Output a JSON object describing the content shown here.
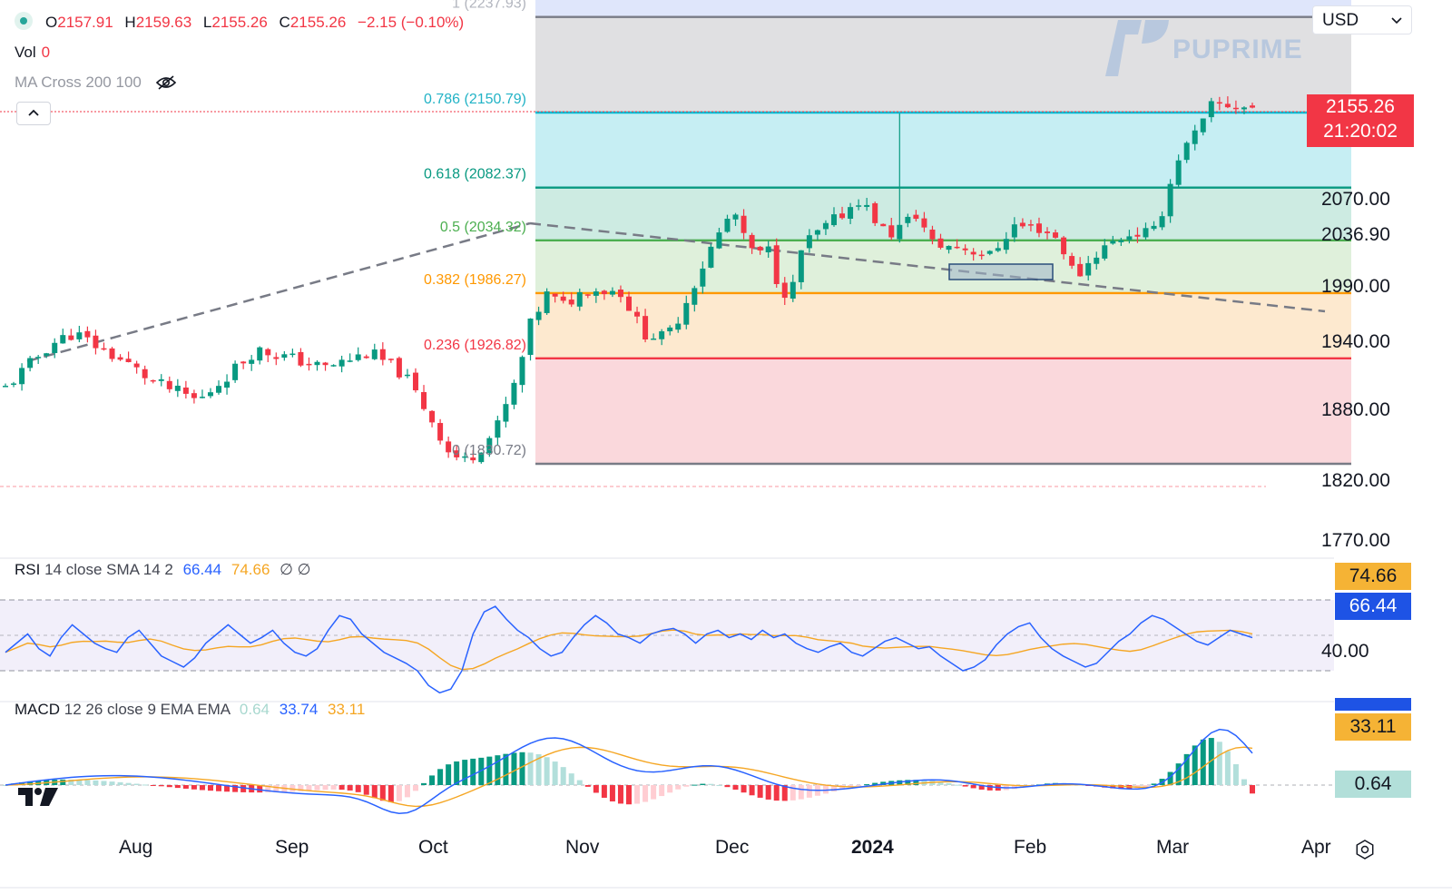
{
  "legend": {
    "open_label": "O",
    "open": "2157.91",
    "high_label": "H",
    "high": "2159.63",
    "low_label": "L",
    "low": "2155.26",
    "close_label": "C",
    "close": "2155.26",
    "change": "−2.15 (−0.10%)"
  },
  "volume": {
    "label": "Vol",
    "value": "0"
  },
  "ma_cross": {
    "label": "MA Cross 200 100"
  },
  "currency": {
    "selected": "USD"
  },
  "watermark": "PUPRIME",
  "price_label": {
    "price": "2155.26",
    "countdown": "21:20:02",
    "color": "#f23645"
  },
  "fib_levels": [
    {
      "ratio": "1",
      "price": 2237.93,
      "label": "1 (2237.93)",
      "line_color": "#787b86",
      "fill": null,
      "label_color": "#b2b5be"
    },
    {
      "ratio": "0.786",
      "price": 2150.79,
      "label": "0.786 (2150.79)",
      "line_color": "#00bcd4",
      "fill": "#e0e0e2",
      "label_color": "#22b3c6"
    },
    {
      "ratio": "0.618",
      "price": 2082.37,
      "label": "0.618 (2082.37)",
      "line_color": "#089981",
      "fill": "#c6eef3",
      "label_color": "#089981"
    },
    {
      "ratio": "0.5",
      "price": 2034.32,
      "label": "0.5 (2034.32)",
      "line_color": "#4caf50",
      "fill": "#cdebe2",
      "label_color": "#4caf50"
    },
    {
      "ratio": "0.382",
      "price": 1986.27,
      "label": "0.382 (1986.27)",
      "line_color": "#ff9800",
      "fill": "#dff0db",
      "label_color": "#ff9800"
    },
    {
      "ratio": "0.236",
      "price": 1926.82,
      "label": "0.236 (1926.82)",
      "line_color": "#f23645",
      "fill": "#fde9cf",
      "label_color": "#f23645"
    },
    {
      "ratio": "0",
      "price": 1830.72,
      "label": "0 (1830.72)",
      "line_color": "#787b86",
      "fill": "#fad8dc",
      "label_color": "#787b86"
    }
  ],
  "price_axis": [
    "2070.00",
    "2036.90",
    "1990.00",
    "1940.00",
    "1880.00",
    "1820.00",
    "1770.00"
  ],
  "time_axis": [
    "Aug",
    "Sep",
    "Oct",
    "Nov",
    "Dec",
    "2024",
    "Feb",
    "Mar",
    "Apr"
  ],
  "rsi": {
    "label": "RSI",
    "params": "14 close SMA 14 2",
    "value": "66.44",
    "sma": "74.66",
    "null_symbols": "∅ ∅",
    "levels": [
      "40.00"
    ]
  },
  "macd": {
    "label": "MACD",
    "params": "12 26 close 9 EMA EMA",
    "histogram": "0.64",
    "macd": "33.74",
    "signal": "33.11"
  },
  "colors": {
    "up": "#089981",
    "down": "#f23645",
    "macd_line": "#2962ff",
    "signal_line": "#f5a623"
  },
  "icons": [
    "visibility-off-icon",
    "chevron-up-icon",
    "chevron-down-icon",
    "tradingview-logo-icon",
    "settings-icon"
  ]
}
